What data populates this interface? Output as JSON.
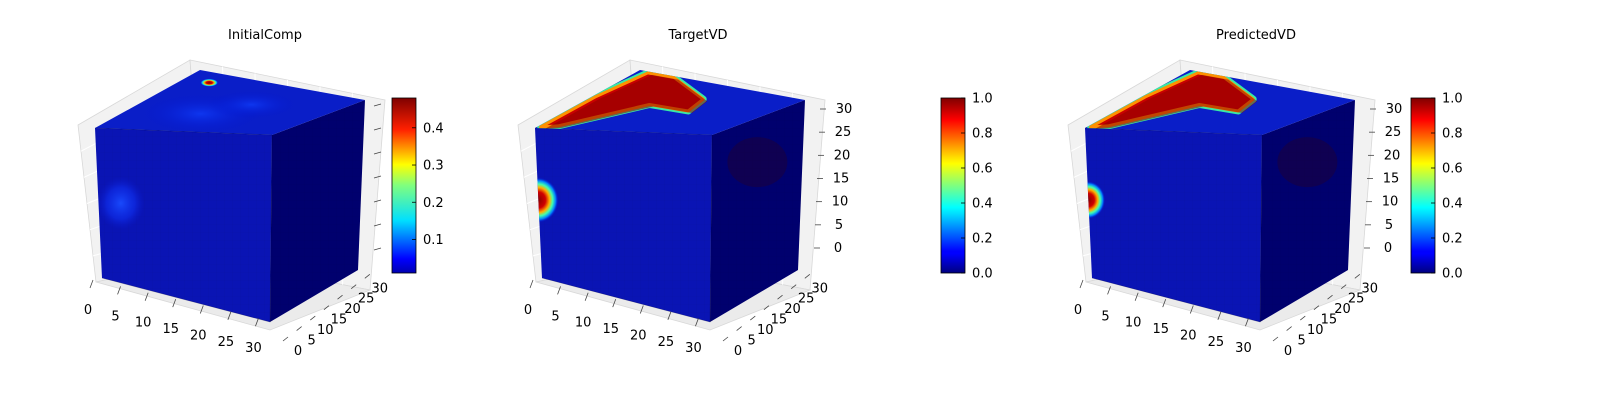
{
  "figure": {
    "background": "#ffffff"
  },
  "chart_data": [
    {
      "type": "3d-voxel",
      "title": "InitialComp",
      "x_ticks": [
        "0",
        "5",
        "10",
        "15",
        "20",
        "25",
        "30"
      ],
      "y_ticks": [
        "0",
        "5",
        "10",
        "15",
        "20",
        "25",
        "30"
      ],
      "z_ticks": [],
      "colormap": "jet",
      "colorbar": {
        "range": [
          0.01,
          0.48
        ],
        "ticks": [
          "0.1",
          "0.2",
          "0.3",
          "0.4"
        ],
        "tick_values": [
          0.1,
          0.2,
          0.3,
          0.4
        ]
      },
      "features": [
        {
          "face": "front",
          "kind": "blob",
          "center_u": 0.13,
          "center_v": 0.48,
          "radius": 0.14,
          "peak": 0.08
        },
        {
          "face": "top",
          "kind": "spot",
          "center_u": 0.85,
          "center_v": 0.15,
          "radius": 0.05,
          "peak": 0.45
        },
        {
          "face": "top",
          "kind": "haze",
          "center_u": 0.35,
          "center_v": 0.4,
          "radius": 0.35,
          "peak": 0.06
        }
      ]
    },
    {
      "type": "3d-voxel",
      "title": "TargetVD",
      "x_ticks": [
        "0",
        "5",
        "10",
        "15",
        "20",
        "25",
        "30"
      ],
      "y_ticks": [
        "0",
        "5",
        "10",
        "15",
        "20",
        "25",
        "30"
      ],
      "z_ticks": [
        "0",
        "5",
        "10",
        "15",
        "20",
        "25",
        "30"
      ],
      "colormap": "jet",
      "colorbar": {
        "range": [
          0.0,
          1.0
        ],
        "ticks": [
          "0.0",
          "0.2",
          "0.4",
          "0.6",
          "0.8",
          "1.0"
        ],
        "tick_values": [
          0,
          0.2,
          0.4,
          0.6,
          0.8,
          1.0
        ]
      },
      "features": [
        {
          "face": "front",
          "kind": "blob",
          "center_u": 0.0,
          "center_v": 0.48,
          "radius": 0.12,
          "peak": 1.0
        },
        {
          "face": "top",
          "kind": "band",
          "center_u": 0.55,
          "center_v": 0.2,
          "radius": 0.16,
          "peak": 1.0
        }
      ]
    },
    {
      "type": "3d-voxel",
      "title": "PredictedVD",
      "x_ticks": [
        "0",
        "5",
        "10",
        "15",
        "20",
        "25",
        "30"
      ],
      "y_ticks": [
        "0",
        "5",
        "10",
        "15",
        "20",
        "25",
        "30"
      ],
      "z_ticks": [
        "0",
        "5",
        "10",
        "15",
        "20",
        "25",
        "30"
      ],
      "colormap": "jet",
      "colorbar": {
        "range": [
          0.0,
          1.0
        ],
        "ticks": [
          "0.0",
          "0.2",
          "0.4",
          "0.6",
          "0.8",
          "1.0"
        ],
        "tick_values": [
          0,
          0.2,
          0.4,
          0.6,
          0.8,
          1.0
        ]
      },
      "features": [
        {
          "face": "front",
          "kind": "blob",
          "center_u": 0.0,
          "center_v": 0.48,
          "radius": 0.1,
          "peak": 0.9
        },
        {
          "face": "top",
          "kind": "band",
          "center_u": 0.55,
          "center_v": 0.2,
          "radius": 0.14,
          "peak": 0.95
        }
      ]
    }
  ]
}
